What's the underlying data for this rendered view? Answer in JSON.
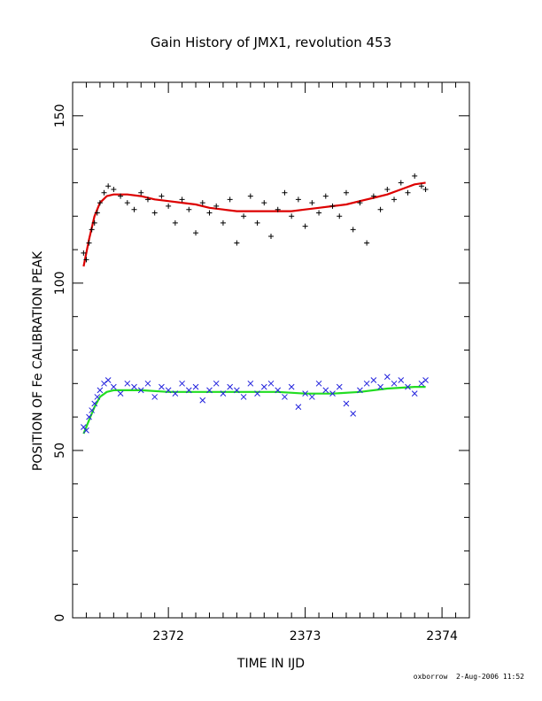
{
  "footer": {
    "author": "oxborrow",
    "timestamp": "2-Aug-2006 11:52"
  },
  "chart_data": {
    "type": "scatter",
    "title": "Gain History of JMX1, revolution 453",
    "xlabel": "TIME IN IJD",
    "ylabel": "POSITION OF Fe CALIBRATION PEAK",
    "xlim": [
      2371.3,
      2374.2
    ],
    "ylim": [
      0,
      160
    ],
    "xticks": [
      2372,
      2373,
      2374
    ],
    "yticks": [
      0,
      50,
      100,
      150
    ],
    "grid": false,
    "colors": {
      "series_1": "#000000",
      "fit_1": "#dd0000",
      "series_2": "#2222dd",
      "fit_2": "#22dd22"
    },
    "series": [
      {
        "marker": "+",
        "color": "#000000",
        "x": [
          2371.38,
          2371.4,
          2371.42,
          2371.44,
          2371.46,
          2371.48,
          2371.5,
          2371.53,
          2371.56,
          2371.6,
          2371.65,
          2371.7,
          2371.75,
          2371.8,
          2371.85,
          2371.9,
          2371.95,
          2372.0,
          2372.05,
          2372.1,
          2372.15,
          2372.2,
          2372.25,
          2372.3,
          2372.35,
          2372.4,
          2372.45,
          2372.5,
          2372.55,
          2372.6,
          2372.65,
          2372.7,
          2372.75,
          2372.8,
          2372.85,
          2372.9,
          2372.95,
          2373.0,
          2373.05,
          2373.1,
          2373.15,
          2373.2,
          2373.25,
          2373.3,
          2373.35,
          2373.4,
          2373.45,
          2373.5,
          2373.55,
          2373.6,
          2373.65,
          2373.7,
          2373.75,
          2373.8,
          2373.85,
          2373.88
        ],
        "y": [
          109,
          107,
          112,
          116,
          118,
          121,
          124,
          127,
          129,
          128,
          126,
          124,
          122,
          127,
          125,
          121,
          126,
          123,
          118,
          125,
          122,
          115,
          124,
          121,
          123,
          118,
          125,
          112,
          120,
          126,
          118,
          124,
          114,
          122,
          127,
          120,
          125,
          117,
          124,
          121,
          126,
          123,
          120,
          127,
          116,
          124,
          112,
          126,
          122,
          128,
          125,
          130,
          127,
          132,
          129,
          128
        ]
      },
      {
        "marker": "x",
        "color": "#2222dd",
        "x": [
          2371.38,
          2371.4,
          2371.42,
          2371.44,
          2371.46,
          2371.48,
          2371.5,
          2371.53,
          2371.56,
          2371.6,
          2371.65,
          2371.7,
          2371.75,
          2371.8,
          2371.85,
          2371.9,
          2371.95,
          2372.0,
          2372.05,
          2372.1,
          2372.15,
          2372.2,
          2372.25,
          2372.3,
          2372.35,
          2372.4,
          2372.45,
          2372.5,
          2372.55,
          2372.6,
          2372.65,
          2372.7,
          2372.75,
          2372.8,
          2372.85,
          2372.9,
          2372.95,
          2373.0,
          2373.05,
          2373.1,
          2373.15,
          2373.2,
          2373.25,
          2373.3,
          2373.35,
          2373.4,
          2373.45,
          2373.5,
          2373.55,
          2373.6,
          2373.65,
          2373.7,
          2373.75,
          2373.8,
          2373.85,
          2373.88
        ],
        "y": [
          57,
          56,
          60,
          62,
          64,
          66,
          68,
          70,
          71,
          69,
          67,
          70,
          69,
          68,
          70,
          66,
          69,
          68,
          67,
          70,
          68,
          69,
          65,
          68,
          70,
          67,
          69,
          68,
          66,
          70,
          67,
          69,
          70,
          68,
          66,
          69,
          63,
          67,
          66,
          70,
          68,
          67,
          69,
          64,
          61,
          68,
          70,
          71,
          69,
          72,
          70,
          71,
          69,
          67,
          70,
          71
        ]
      }
    ],
    "fits": [
      {
        "color": "#dd0000",
        "x": [
          2371.38,
          2371.42,
          2371.46,
          2371.5,
          2371.55,
          2371.6,
          2371.7,
          2371.8,
          2371.9,
          2372.0,
          2372.1,
          2372.2,
          2372.3,
          2372.4,
          2372.5,
          2372.6,
          2372.7,
          2372.8,
          2372.9,
          2373.0,
          2373.1,
          2373.2,
          2373.3,
          2373.4,
          2373.5,
          2373.6,
          2373.7,
          2373.8,
          2373.88
        ],
        "y": [
          105,
          113,
          120,
          124,
          126,
          126.5,
          126.5,
          126,
          125,
          124.5,
          124,
          123.5,
          122.5,
          122,
          121.5,
          121.5,
          121.5,
          121.5,
          121.5,
          122,
          122.5,
          123,
          123.5,
          124.5,
          125.5,
          126.5,
          128,
          129.5,
          130
        ]
      },
      {
        "color": "#22dd22",
        "x": [
          2371.38,
          2371.42,
          2371.46,
          2371.5,
          2371.55,
          2371.6,
          2371.8,
          2372.0,
          2372.2,
          2372.4,
          2372.6,
          2372.8,
          2373.0,
          2373.2,
          2373.4,
          2373.6,
          2373.8,
          2373.88
        ],
        "y": [
          55,
          59,
          63,
          66,
          67.5,
          68,
          68,
          67.5,
          67.5,
          67.5,
          67.5,
          67.5,
          67,
          67,
          67.5,
          68.5,
          69,
          69
        ]
      }
    ]
  }
}
